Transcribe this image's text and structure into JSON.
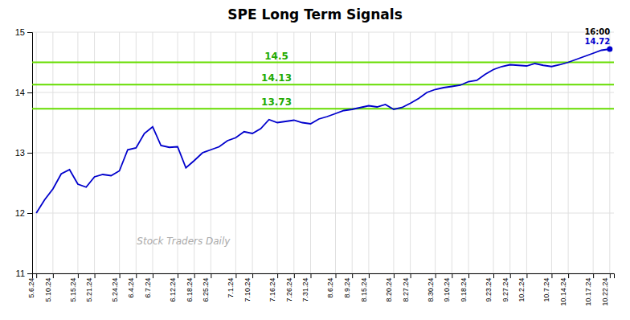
{
  "chart_data": {
    "type": "line",
    "title": "SPE Long Term Signals",
    "color": "#0000cc",
    "categories": [
      "5.6.24",
      null,
      "5.10.24",
      null,
      null,
      "5.15.24",
      null,
      "5.21.24",
      null,
      null,
      "5.24.24",
      null,
      "6.4.24",
      null,
      "6.7.24",
      null,
      null,
      "6.12.24",
      null,
      "6.18.24",
      null,
      "6.25.24",
      null,
      null,
      "7.1.24",
      null,
      "7.10.24",
      null,
      null,
      "7.16.24",
      null,
      "7.26.24",
      null,
      "7.31.24",
      null,
      null,
      "8.6.24",
      null,
      "8.9.24",
      null,
      "8.15.24",
      null,
      null,
      "8.20.24",
      null,
      "8.27.24",
      null,
      null,
      "8.30.24",
      null,
      "9.10.24",
      null,
      "9.18.24",
      null,
      null,
      "9.23.24",
      null,
      "9.27.24",
      null,
      "10.2.24",
      null,
      null,
      "10.7.24",
      null,
      "10.14.24",
      null,
      null,
      "10.17.24",
      null,
      "10.22.24"
    ],
    "values": [
      12.0,
      12.22,
      12.4,
      12.65,
      12.72,
      12.48,
      12.43,
      12.6,
      12.64,
      12.62,
      12.7,
      13.05,
      13.08,
      13.32,
      13.43,
      13.12,
      13.09,
      13.1,
      12.75,
      12.87,
      13.0,
      13.05,
      13.1,
      13.2,
      13.25,
      13.35,
      13.32,
      13.4,
      13.55,
      13.5,
      13.52,
      13.54,
      13.5,
      13.48,
      13.56,
      13.6,
      13.65,
      13.7,
      13.72,
      13.75,
      13.78,
      13.76,
      13.8,
      13.72,
      13.75,
      13.82,
      13.9,
      14.0,
      14.05,
      14.08,
      14.1,
      14.12,
      14.18,
      14.2,
      14.3,
      14.38,
      14.43,
      14.46,
      14.45,
      14.44,
      14.48,
      14.45,
      14.43,
      14.46,
      14.5,
      14.55,
      14.6,
      14.65,
      14.7,
      14.72
    ],
    "ylim": [
      11,
      15
    ],
    "yticks": [
      11,
      12,
      13,
      14,
      15
    ],
    "grid": true,
    "hlines": [
      {
        "y": 14.5,
        "label": "14.5",
        "color": "#66dd00",
        "label_color": "#22aa00"
      },
      {
        "y": 14.13,
        "label": "14.13",
        "color": "#66dd00",
        "label_color": "#22aa00"
      },
      {
        "y": 13.73,
        "label": "13.73",
        "color": "#66dd00",
        "label_color": "#22aa00"
      }
    ],
    "annotations": [
      {
        "text": "16:00",
        "color": "#000000"
      },
      {
        "text": "14.72",
        "color": "#0000cc"
      }
    ],
    "watermark": "Stock Traders Daily"
  }
}
